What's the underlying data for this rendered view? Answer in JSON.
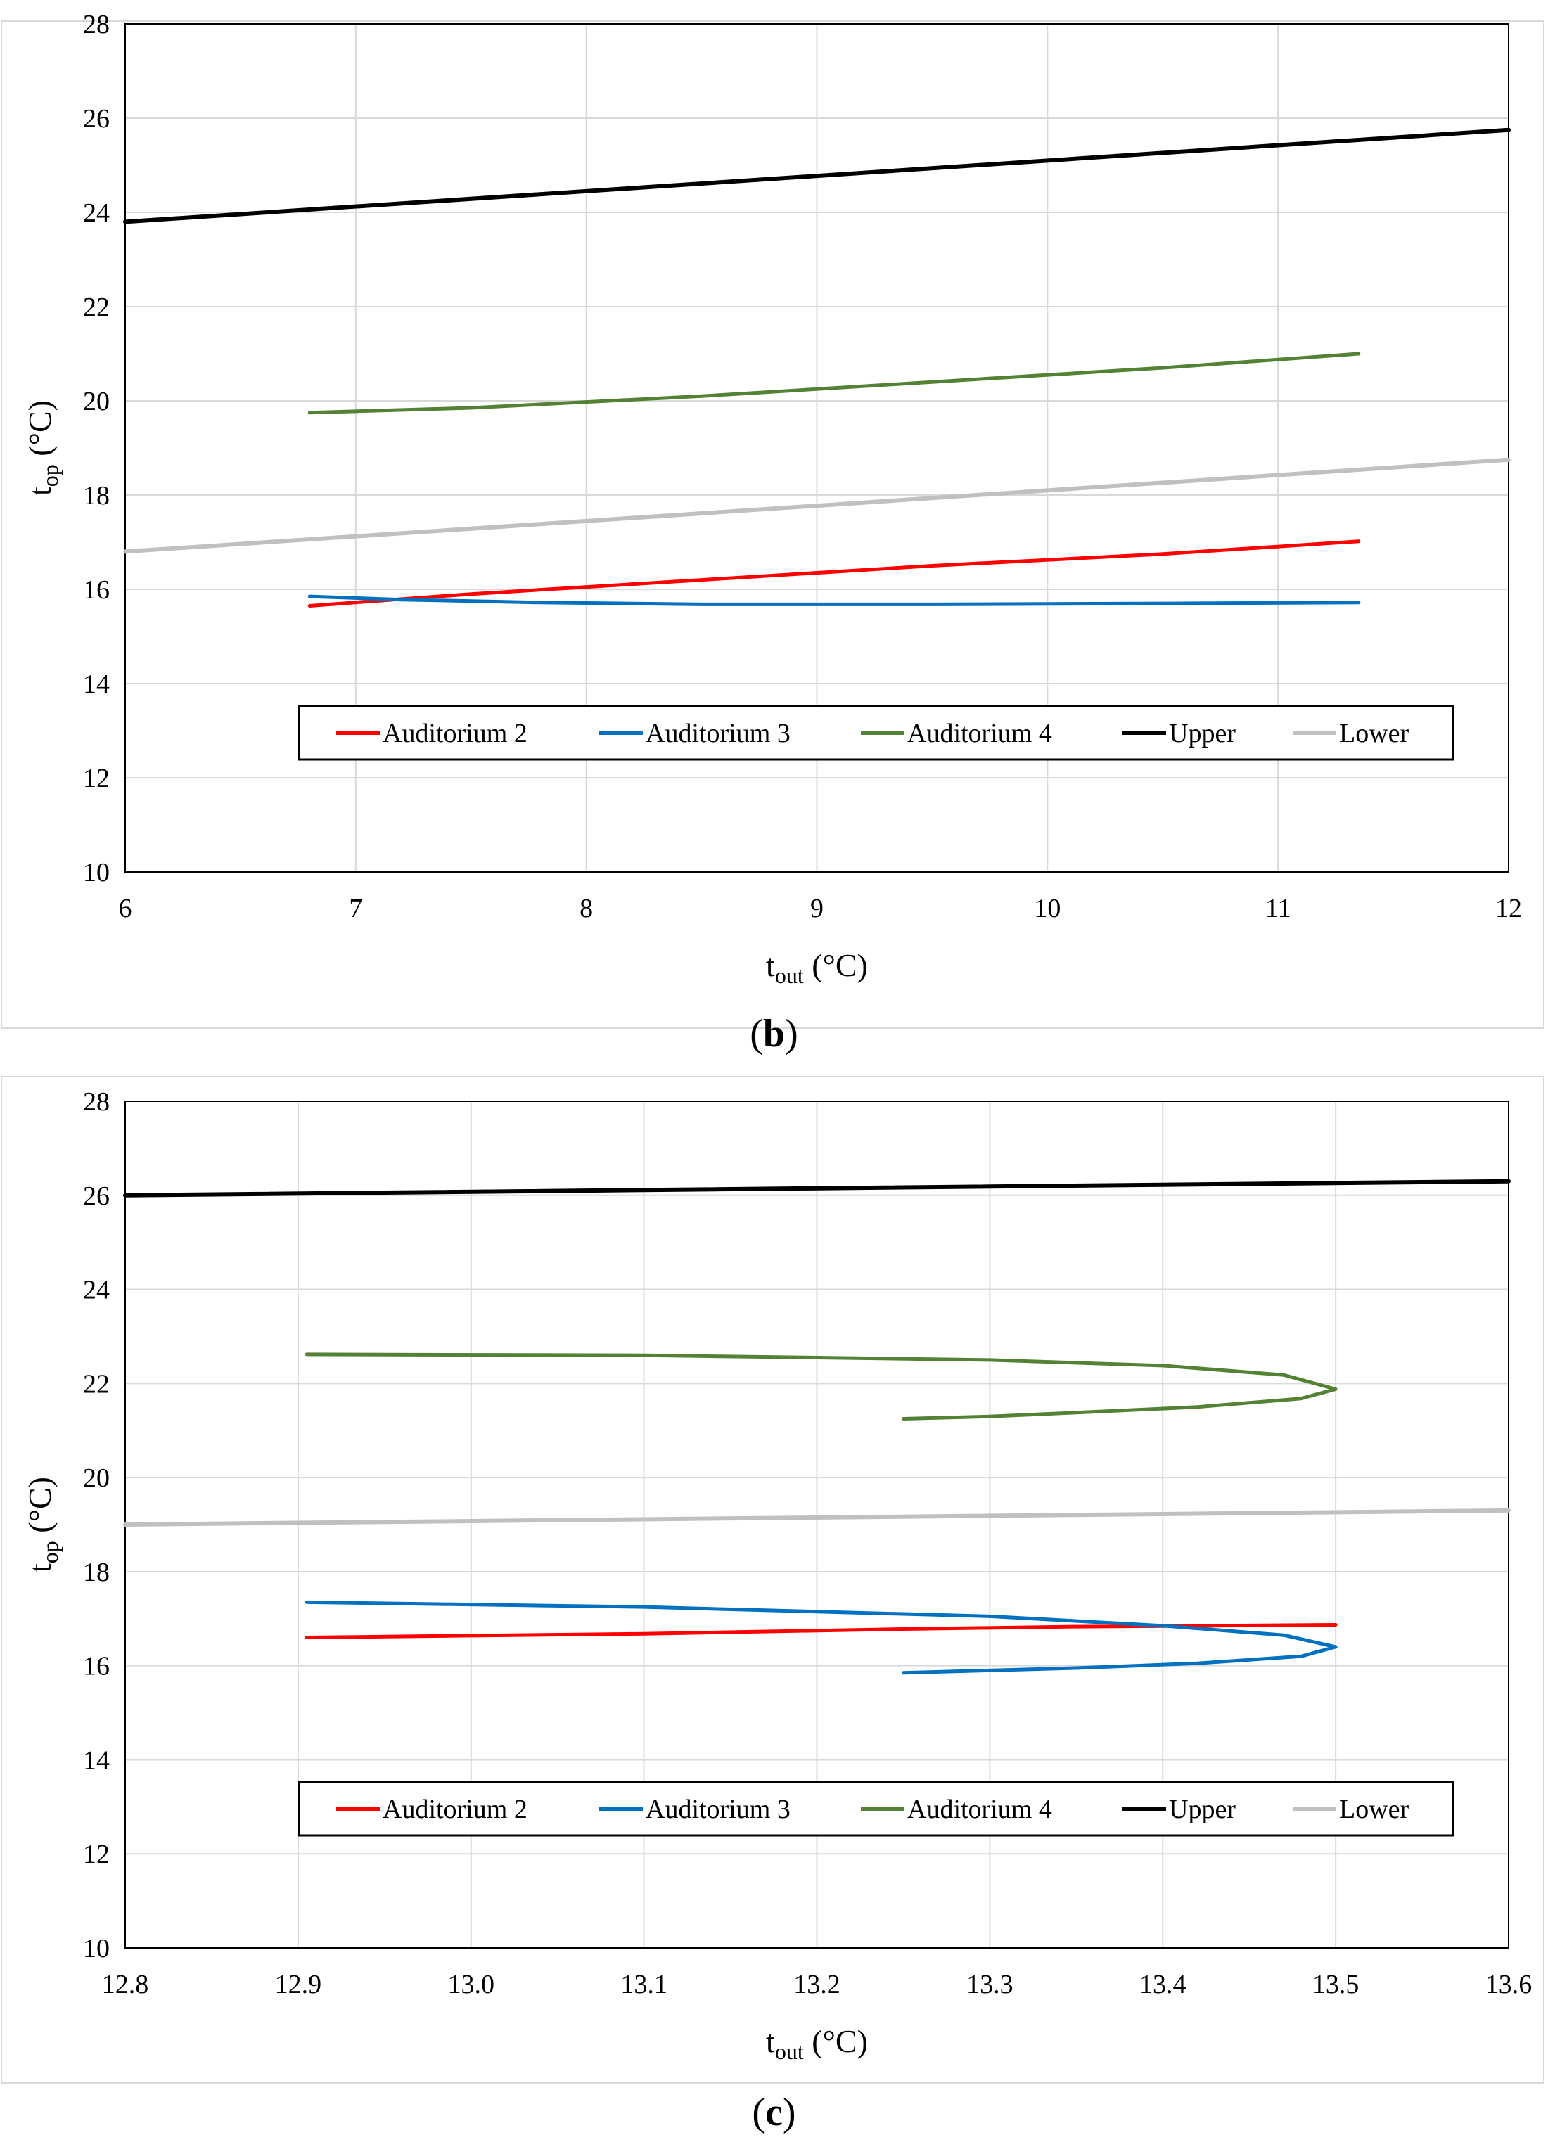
{
  "chart_data": [
    {
      "type": "line",
      "panel_label": "b",
      "xlabel": {
        "main": "t",
        "sub": "out",
        "unit": " (°C)"
      },
      "ylabel": {
        "main": "t",
        "sub": "op",
        "unit": " (°C)"
      },
      "xlim": [
        6,
        12
      ],
      "ylim": [
        10,
        28
      ],
      "xticks": [
        6,
        7,
        8,
        9,
        10,
        11,
        12
      ],
      "xtick_labels": [
        "6",
        "7",
        "8",
        "9",
        "10",
        "11",
        "12"
      ],
      "yticks": [
        10,
        12,
        14,
        16,
        18,
        20,
        22,
        24,
        26,
        28
      ],
      "ytick_labels": [
        "10",
        "12",
        "14",
        "16",
        "18",
        "20",
        "22",
        "24",
        "26",
        "28"
      ],
      "grid": true,
      "legend_position": "bottom-center",
      "series": [
        {
          "name": "Auditorium 2",
          "color": "#ff0000",
          "x": [
            6.8,
            7.5,
            8.5,
            9.5,
            10.5,
            11.35
          ],
          "y": [
            15.65,
            15.9,
            16.2,
            16.5,
            16.75,
            17.02
          ]
        },
        {
          "name": "Auditorium 3",
          "color": "#0070c0",
          "x": [
            6.8,
            7.2,
            7.8,
            8.5,
            9.5,
            10.5,
            11.35
          ],
          "y": [
            15.85,
            15.78,
            15.72,
            15.68,
            15.68,
            15.7,
            15.72
          ]
        },
        {
          "name": "Auditorium 4",
          "color": "#548235",
          "x": [
            6.8,
            7.5,
            8.5,
            9.5,
            10.5,
            11.35
          ],
          "y": [
            19.75,
            19.85,
            20.1,
            20.4,
            20.7,
            21.0
          ]
        },
        {
          "name": "Upper",
          "color": "#000000",
          "x": [
            6,
            12
          ],
          "y": [
            23.8,
            25.75
          ]
        },
        {
          "name": "Lower",
          "color": "#c0c0c0",
          "x": [
            6,
            12
          ],
          "y": [
            16.8,
            18.75
          ]
        }
      ]
    },
    {
      "type": "line",
      "panel_label": "c",
      "xlabel": {
        "main": "t",
        "sub": "out",
        "unit": " (°C)"
      },
      "ylabel": {
        "main": "t",
        "sub": "op",
        "unit": " (°C)"
      },
      "xlim": [
        12.8,
        13.6
      ],
      "ylim": [
        10,
        28
      ],
      "xticks": [
        12.8,
        12.9,
        13.0,
        13.1,
        13.2,
        13.3,
        13.4,
        13.5,
        13.6
      ],
      "xtick_labels": [
        "12.8",
        "12.9",
        "13.0",
        "13.1",
        "13.2",
        "13.3",
        "13.4",
        "13.5",
        "13.6"
      ],
      "yticks": [
        10,
        12,
        14,
        16,
        18,
        20,
        22,
        24,
        26,
        28
      ],
      "ytick_labels": [
        "10",
        "12",
        "14",
        "16",
        "18",
        "20",
        "22",
        "24",
        "26",
        "28"
      ],
      "grid": true,
      "legend_position": "bottom-center",
      "series": [
        {
          "name": "Auditorium 2",
          "color": "#ff0000",
          "x": [
            12.905,
            13.1,
            13.25,
            13.35,
            13.5
          ],
          "y": [
            16.6,
            16.68,
            16.78,
            16.83,
            16.87
          ]
        },
        {
          "name": "Auditorium 3",
          "color": "#0070c0",
          "x": [
            12.905,
            13.1,
            13.3,
            13.4,
            13.47,
            13.5,
            13.48,
            13.42,
            13.35,
            13.3,
            13.25
          ],
          "y": [
            17.35,
            17.25,
            17.05,
            16.85,
            16.65,
            16.4,
            16.2,
            16.05,
            15.95,
            15.9,
            15.85
          ]
        },
        {
          "name": "Auditorium 4",
          "color": "#548235",
          "x": [
            12.905,
            13.1,
            13.3,
            13.4,
            13.47,
            13.5,
            13.48,
            13.42,
            13.35,
            13.3,
            13.25
          ],
          "y": [
            22.62,
            22.6,
            22.5,
            22.38,
            22.18,
            21.88,
            21.68,
            21.5,
            21.38,
            21.3,
            21.25
          ]
        },
        {
          "name": "Upper",
          "color": "#000000",
          "x": [
            12.8,
            13.6
          ],
          "y": [
            26.0,
            26.3
          ]
        },
        {
          "name": "Lower",
          "color": "#c0c0c0",
          "x": [
            12.8,
            13.6
          ],
          "y": [
            19.0,
            19.3
          ]
        }
      ]
    }
  ]
}
